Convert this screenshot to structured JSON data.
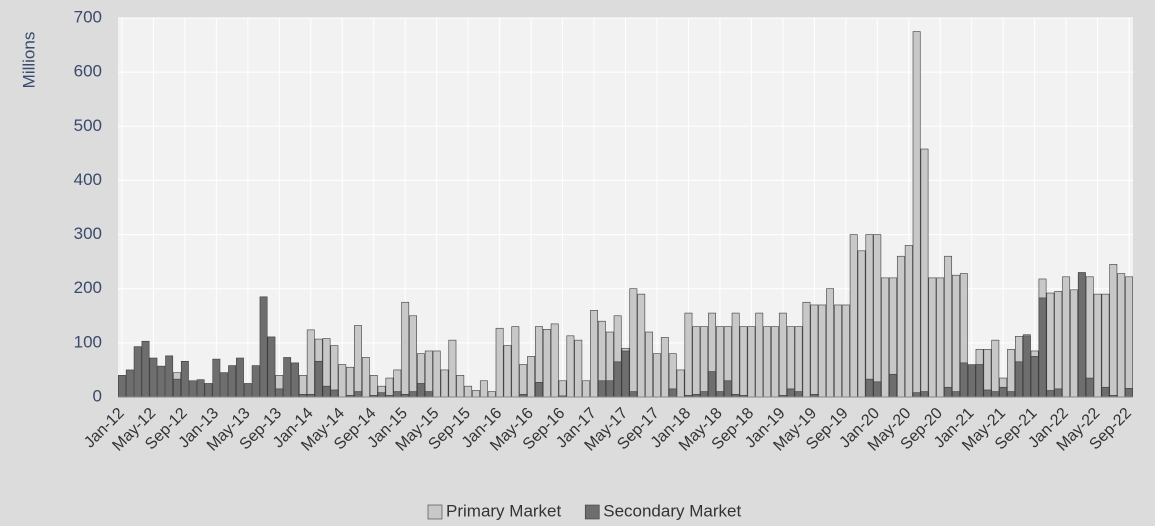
{
  "chart_data": {
    "type": "bar",
    "ylabel": "Millions",
    "categories": [
      "Jan-12",
      null,
      null,
      null,
      "May-12",
      null,
      null,
      null,
      "Sep-12",
      null,
      null,
      null,
      "Jan-13",
      null,
      null,
      null,
      "May-13",
      null,
      null,
      null,
      "Sep-13",
      null,
      null,
      null,
      "Jan-14",
      null,
      null,
      null,
      "May-14",
      null,
      null,
      null,
      "Sep-14",
      null,
      null,
      null,
      "Jan-15",
      null,
      null,
      null,
      "May-15",
      null,
      null,
      null,
      "Sep-15",
      null,
      null,
      null,
      "Jan-16",
      null,
      null,
      null,
      "May-16",
      null,
      null,
      null,
      "Sep-16",
      null,
      null,
      null,
      "Jan-17",
      null,
      null,
      null,
      "May-17",
      null,
      null,
      null,
      "Sep-17",
      null,
      null,
      null,
      "Jan-18",
      null,
      null,
      null,
      "May-18",
      null,
      null,
      null,
      "Sep-18",
      null,
      null,
      null,
      "Jan-19",
      null,
      null,
      null,
      "May-19",
      null,
      null,
      null,
      "Sep-19",
      null,
      null,
      null,
      "Jan-20",
      null,
      null,
      null,
      "May-20",
      null,
      null,
      null,
      "Sep-20",
      null,
      null,
      null,
      "Jan-21",
      null,
      null,
      null,
      "May-21",
      null,
      null,
      null,
      "Sep-21",
      null,
      null,
      null,
      "Jan-22",
      null,
      null,
      null,
      "May-22",
      null,
      null,
      null,
      "Sep-22"
    ],
    "series": [
      {
        "name": "Primary Market",
        "color": "#c8c8c8",
        "values": [
          0,
          0,
          0,
          0,
          0,
          0,
          0,
          45,
          0,
          0,
          0,
          0,
          0,
          0,
          0,
          0,
          0,
          0,
          0,
          0,
          40,
          0,
          0,
          40,
          124,
          107,
          108,
          95,
          60,
          55,
          132,
          73,
          40,
          20,
          35,
          50,
          175,
          150,
          80,
          85,
          85,
          50,
          105,
          40,
          20,
          12,
          30,
          10,
          127,
          95,
          130,
          60,
          75,
          130,
          125,
          135,
          30,
          113,
          105,
          30,
          160,
          140,
          120,
          150,
          90,
          200,
          190,
          120,
          80,
          110,
          80,
          50,
          155,
          130,
          130,
          155,
          130,
          130,
          155,
          130,
          130,
          155,
          130,
          130,
          155,
          130,
          130,
          175,
          170,
          170,
          200,
          170,
          170,
          300,
          270,
          300,
          300,
          220,
          220,
          260,
          280,
          675,
          458,
          220,
          220,
          260,
          225,
          228,
          60,
          88,
          88,
          105,
          35,
          88,
          112,
          115,
          85,
          218,
          192,
          195,
          222,
          198,
          228,
          222,
          190,
          190,
          245,
          228,
          222
        ]
      },
      {
        "name": "Secondary Market",
        "color": "#6e6e6e",
        "values": [
          40,
          50,
          93,
          103,
          72,
          57,
          76,
          33,
          66,
          30,
          32,
          25,
          70,
          45,
          58,
          72,
          25,
          58,
          185,
          111,
          15,
          73,
          63,
          5,
          5,
          66,
          20,
          13,
          0,
          3,
          10,
          0,
          3,
          8,
          3,
          10,
          5,
          10,
          25,
          10,
          0,
          0,
          0,
          0,
          0,
          0,
          0,
          0,
          0,
          0,
          0,
          5,
          0,
          27,
          0,
          0,
          2,
          0,
          0,
          0,
          0,
          30,
          30,
          65,
          85,
          10,
          0,
          0,
          0,
          0,
          15,
          0,
          3,
          5,
          10,
          47,
          10,
          30,
          5,
          3,
          0,
          0,
          0,
          0,
          3,
          15,
          10,
          0,
          5,
          0,
          0,
          0,
          0,
          0,
          0,
          33,
          28,
          0,
          42,
          0,
          0,
          8,
          10,
          0,
          0,
          18,
          10,
          63,
          58,
          60,
          13,
          10,
          18,
          10,
          65,
          113,
          75,
          183,
          12,
          15,
          0,
          0,
          230,
          35,
          0,
          18,
          3,
          0,
          16
        ]
      }
    ],
    "ylim": [
      0,
      700
    ],
    "yticks": [
      0,
      100,
      200,
      300,
      400,
      500,
      600,
      700
    ],
    "grid": true,
    "legend": "bottom"
  }
}
